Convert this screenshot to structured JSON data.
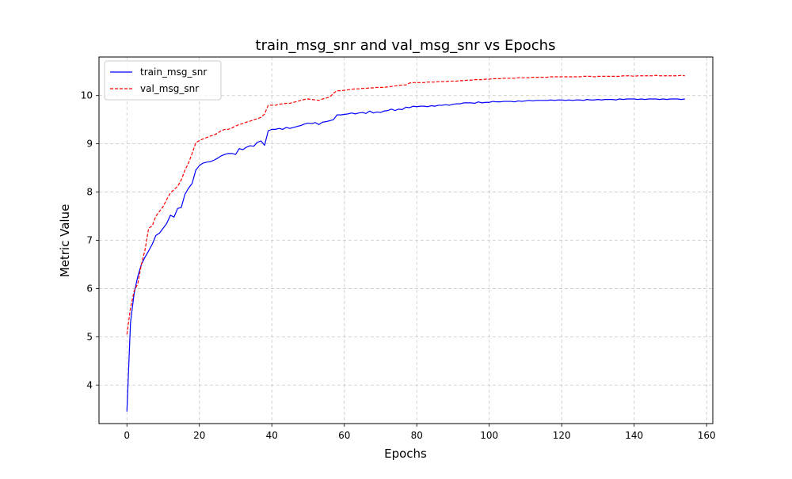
{
  "chart_data": {
    "type": "line",
    "title": "train_msg_snr and val_msg_snr vs Epochs",
    "xlabel": "Epochs",
    "ylabel": "Metric Value",
    "xlim": [
      -7.7,
      161.7
    ],
    "ylim": [
      3.2,
      10.8
    ],
    "xticks": [
      0,
      20,
      40,
      60,
      80,
      100,
      120,
      140,
      160
    ],
    "yticks": [
      4,
      5,
      6,
      7,
      8,
      9,
      10
    ],
    "grid": true,
    "legend": "top-left",
    "series": [
      {
        "name": "train_msg_snr",
        "color": "#0000ff",
        "style": "solid",
        "x": [
          0,
          1,
          2,
          3,
          4,
          5,
          6,
          7,
          8,
          9,
          10,
          11,
          12,
          13,
          14,
          15,
          16,
          17,
          18,
          19,
          20,
          21,
          22,
          23,
          24,
          25,
          26,
          27,
          28,
          29,
          30,
          31,
          32,
          33,
          34,
          35,
          36,
          37,
          38,
          39,
          40,
          41,
          42,
          43,
          44,
          45,
          46,
          47,
          48,
          49,
          50,
          51,
          52,
          53,
          54,
          55,
          56,
          57,
          58,
          59,
          60,
          61,
          62,
          63,
          64,
          65,
          66,
          67,
          68,
          69,
          70,
          71,
          72,
          73,
          74,
          75,
          76,
          77,
          78,
          79,
          80,
          81,
          82,
          83,
          84,
          85,
          86,
          87,
          88,
          89,
          90,
          91,
          92,
          93,
          94,
          95,
          96,
          97,
          98,
          99,
          100,
          101,
          102,
          103,
          104,
          105,
          106,
          107,
          108,
          109,
          110,
          111,
          112,
          113,
          114,
          115,
          116,
          117,
          118,
          119,
          120,
          121,
          122,
          123,
          124,
          125,
          126,
          127,
          128,
          129,
          130,
          131,
          132,
          133,
          134,
          135,
          136,
          137,
          138,
          139,
          140,
          141,
          142,
          143,
          144,
          145,
          146,
          147,
          148,
          149,
          150,
          151,
          152,
          153,
          154
        ],
        "y": [
          3.45,
          5.3,
          5.9,
          6.25,
          6.5,
          6.65,
          6.78,
          6.92,
          7.1,
          7.15,
          7.25,
          7.35,
          7.52,
          7.48,
          7.66,
          7.68,
          7.95,
          8.08,
          8.18,
          8.45,
          8.55,
          8.6,
          8.62,
          8.63,
          8.66,
          8.7,
          8.75,
          8.78,
          8.8,
          8.8,
          8.78,
          8.9,
          8.88,
          8.93,
          8.96,
          8.95,
          9.03,
          9.06,
          8.97,
          9.27,
          9.3,
          9.3,
          9.32,
          9.3,
          9.34,
          9.32,
          9.34,
          9.36,
          9.38,
          9.41,
          9.43,
          9.42,
          9.44,
          9.4,
          9.45,
          9.46,
          9.48,
          9.5,
          9.6,
          9.6,
          9.61,
          9.62,
          9.64,
          9.62,
          9.64,
          9.65,
          9.63,
          9.68,
          9.64,
          9.66,
          9.65,
          9.68,
          9.69,
          9.72,
          9.69,
          9.72,
          9.71,
          9.76,
          9.75,
          9.78,
          9.77,
          9.78,
          9.78,
          9.77,
          9.79,
          9.78,
          9.8,
          9.8,
          9.81,
          9.8,
          9.82,
          9.83,
          9.83,
          9.85,
          9.85,
          9.85,
          9.84,
          9.87,
          9.85,
          9.86,
          9.86,
          9.88,
          9.87,
          9.87,
          9.88,
          9.88,
          9.88,
          9.87,
          9.89,
          9.88,
          9.89,
          9.9,
          9.89,
          9.9,
          9.9,
          9.9,
          9.9,
          9.91,
          9.9,
          9.91,
          9.91,
          9.9,
          9.91,
          9.9,
          9.91,
          9.91,
          9.9,
          9.92,
          9.91,
          9.91,
          9.92,
          9.91,
          9.92,
          9.92,
          9.92,
          9.91,
          9.93,
          9.92,
          9.93,
          9.93,
          9.93,
          9.92,
          9.93,
          9.92,
          9.93,
          9.93,
          9.93,
          9.92,
          9.93,
          9.92,
          9.93,
          9.93,
          9.93,
          9.92,
          9.93
        ],
        "x_note": ""
      },
      {
        "name": "val_msg_snr",
        "color": "#ff0000",
        "style": "dashed",
        "x": [
          0,
          1,
          2,
          3,
          4,
          5,
          6,
          7,
          8,
          9,
          10,
          11,
          12,
          13,
          14,
          15,
          16,
          17,
          18,
          19,
          20,
          21,
          22,
          23,
          24,
          25,
          26,
          27,
          28,
          29,
          30,
          31,
          32,
          33,
          34,
          35,
          36,
          37,
          38,
          39,
          40,
          41,
          42,
          43,
          44,
          45,
          46,
          47,
          48,
          49,
          50,
          51,
          52,
          53,
          54,
          55,
          56,
          57,
          58,
          59,
          60,
          61,
          62,
          63,
          64,
          65,
          66,
          67,
          68,
          69,
          70,
          71,
          72,
          73,
          74,
          75,
          76,
          77,
          78,
          79,
          80,
          81,
          82,
          83,
          84,
          85,
          86,
          87,
          88,
          89,
          90,
          91,
          92,
          93,
          94,
          95,
          96,
          97,
          98,
          99,
          100,
          101,
          102,
          103,
          104,
          105,
          106,
          107,
          108,
          109,
          110,
          111,
          112,
          113,
          114,
          115,
          116,
          117,
          118,
          119,
          120,
          121,
          122,
          123,
          124,
          125,
          126,
          127,
          128,
          129,
          130,
          131,
          132,
          133,
          134,
          135,
          136,
          137,
          138,
          139,
          140,
          141,
          142,
          143,
          144,
          145,
          146,
          147,
          148,
          149,
          150,
          151,
          152,
          153,
          154
        ],
        "y": [
          5.05,
          5.6,
          5.95,
          6.1,
          6.5,
          6.8,
          7.25,
          7.3,
          7.5,
          7.6,
          7.7,
          7.85,
          7.98,
          8.05,
          8.12,
          8.25,
          8.45,
          8.6,
          8.8,
          9.02,
          9.07,
          9.1,
          9.13,
          9.16,
          9.18,
          9.22,
          9.27,
          9.3,
          9.3,
          9.33,
          9.37,
          9.4,
          9.42,
          9.45,
          9.47,
          9.5,
          9.52,
          9.55,
          9.62,
          9.8,
          9.8,
          9.8,
          9.82,
          9.83,
          9.84,
          9.84,
          9.86,
          9.88,
          9.9,
          9.92,
          9.93,
          9.92,
          9.91,
          9.9,
          9.93,
          9.95,
          9.97,
          10.05,
          10.1,
          10.1,
          10.11,
          10.12,
          10.13,
          10.14,
          10.14,
          10.15,
          10.15,
          10.16,
          10.16,
          10.17,
          10.17,
          10.17,
          10.18,
          10.19,
          10.2,
          10.21,
          10.22,
          10.22,
          10.26,
          10.27,
          10.27,
          10.27,
          10.27,
          10.28,
          10.28,
          10.28,
          10.29,
          10.29,
          10.29,
          10.3,
          10.3,
          10.3,
          10.31,
          10.31,
          10.32,
          10.32,
          10.33,
          10.33,
          10.33,
          10.34,
          10.34,
          10.35,
          10.35,
          10.35,
          10.36,
          10.36,
          10.36,
          10.36,
          10.37,
          10.37,
          10.37,
          10.37,
          10.38,
          10.38,
          10.38,
          10.38,
          10.38,
          10.39,
          10.39,
          10.39,
          10.39,
          10.39,
          10.39,
          10.39,
          10.39,
          10.39,
          10.4,
          10.4,
          10.4,
          10.39,
          10.4,
          10.4,
          10.4,
          10.4,
          10.4,
          10.4,
          10.4,
          10.41,
          10.41,
          10.41,
          10.4,
          10.41,
          10.41,
          10.41,
          10.41,
          10.41,
          10.42,
          10.41,
          10.41,
          10.41,
          10.41,
          10.41,
          10.41,
          10.42,
          10.41
        ],
        "x_note": ""
      }
    ]
  }
}
